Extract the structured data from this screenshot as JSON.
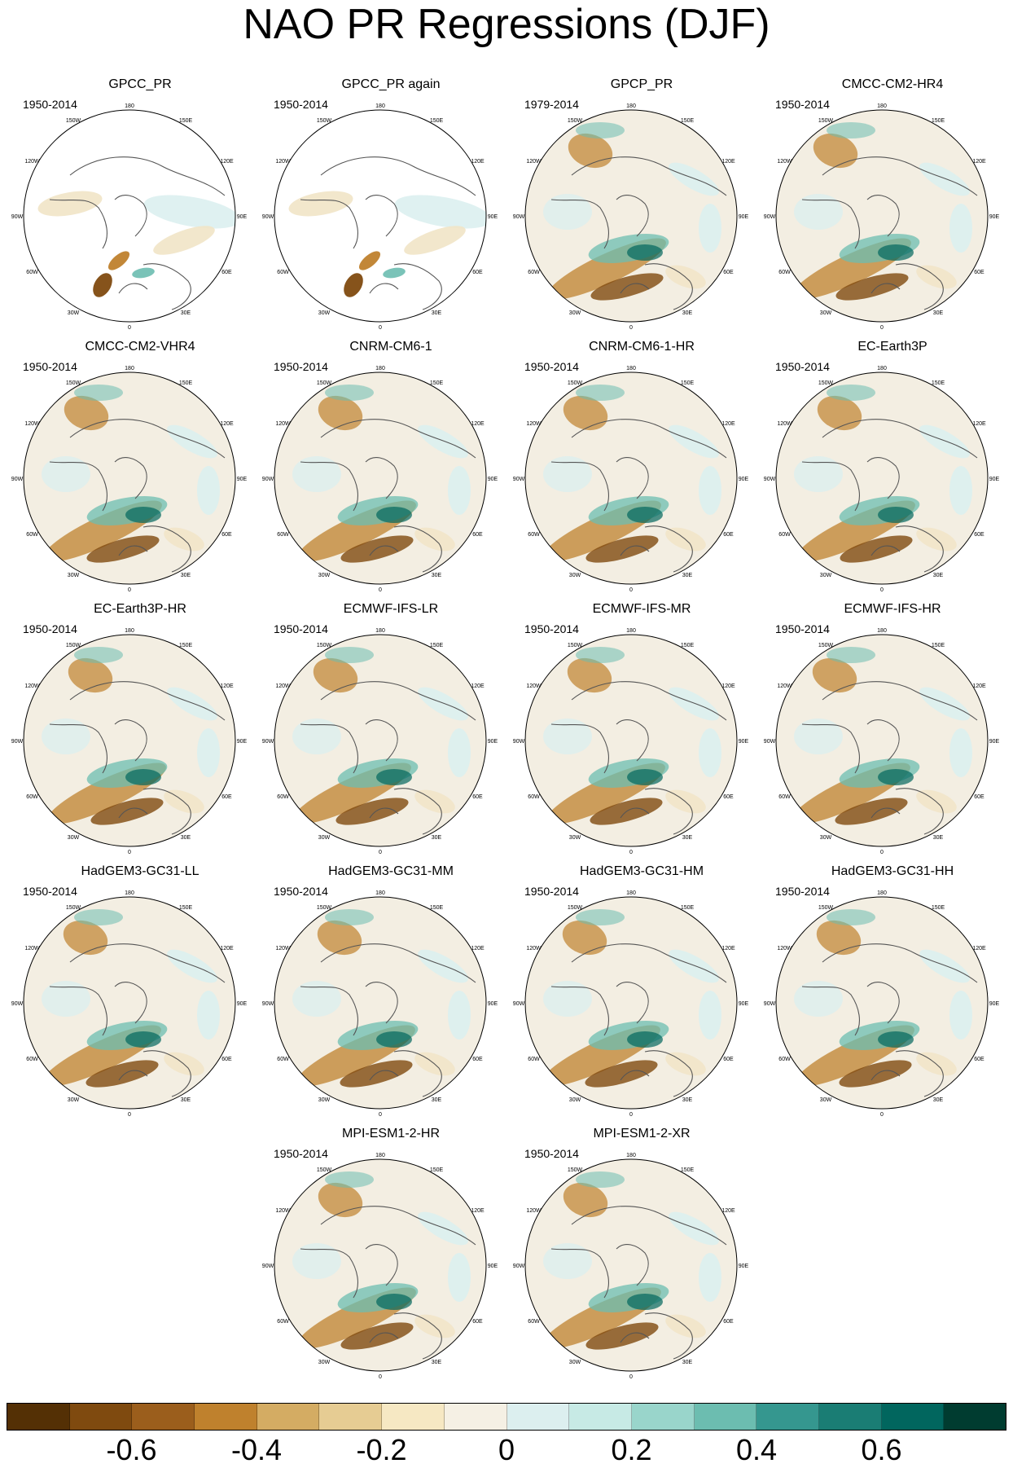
{
  "title": "NAO PR Regressions (DJF)",
  "longitude_labels": {
    "top": "180",
    "bottom": "0",
    "upper_left": "150W",
    "upper_right": "150E",
    "mid_upper_left": "120W",
    "mid_upper_right": "120E",
    "left": "90W",
    "right": "90E",
    "mid_lower_left": "60W",
    "mid_lower_right": "60E",
    "lower_left": "30W",
    "lower_right": "30E"
  },
  "panels": [
    {
      "title": "GPCC_PR",
      "period": "1950-2014",
      "style": "gpcc"
    },
    {
      "title": "GPCC_PR again",
      "period": "1950-2014",
      "style": "gpcc"
    },
    {
      "title": "GPCP_PR",
      "period": "1979-2014",
      "style": "gpcp"
    },
    {
      "title": "CMCC-CM2-HR4",
      "period": "1950-2014",
      "style": "model"
    },
    {
      "title": "CMCC-CM2-VHR4",
      "period": "1950-2014",
      "style": "model"
    },
    {
      "title": "CNRM-CM6-1",
      "period": "1950-2014",
      "style": "model"
    },
    {
      "title": "CNRM-CM6-1-HR",
      "period": "1950-2014",
      "style": "model"
    },
    {
      "title": "EC-Earth3P",
      "period": "1950-2014",
      "style": "model"
    },
    {
      "title": "EC-Earth3P-HR",
      "period": "1950-2014",
      "style": "model"
    },
    {
      "title": "ECMWF-IFS-LR",
      "period": "1950-2014",
      "style": "model"
    },
    {
      "title": "ECMWF-IFS-MR",
      "period": "1950-2014",
      "style": "model"
    },
    {
      "title": "ECMWF-IFS-HR",
      "period": "1950-2014",
      "style": "model"
    },
    {
      "title": "HadGEM3-GC31-LL",
      "period": "1950-2014",
      "style": "model"
    },
    {
      "title": "HadGEM3-GC31-MM",
      "period": "1950-2014",
      "style": "model"
    },
    {
      "title": "HadGEM3-GC31-HM",
      "period": "1950-2014",
      "style": "model"
    },
    {
      "title": "HadGEM3-GC31-HH",
      "period": "1950-2014",
      "style": "model"
    },
    {
      "title": "MPI-ESM1-2-HR",
      "period": "1950-2014",
      "style": "model"
    },
    {
      "title": "MPI-ESM1-2-XR",
      "period": "1950-2014",
      "style": "model"
    }
  ],
  "colorbar": {
    "colors": [
      "#543005",
      "#7f4a0f",
      "#9b5e1c",
      "#bf812d",
      "#d4ac63",
      "#e6cc93",
      "#f6e8c3",
      "#f5f0e4",
      "#dcefef",
      "#c7eae5",
      "#99d5cb",
      "#6cbdb0",
      "#35978f",
      "#1a7d74",
      "#01665e",
      "#003c30"
    ],
    "tick_labels": [
      "-0.6",
      "-0.4",
      "-0.2",
      "0",
      "0.2",
      "0.4",
      "0.6"
    ]
  },
  "colors": {
    "brown_dark": "#7f4a0f",
    "brown_mid": "#bf812d",
    "tan_light": "#f1e4c6",
    "teal_light": "#dcefef",
    "teal_mid": "#6cbdb0",
    "teal_dark": "#01665e",
    "coastline": "#555555"
  }
}
